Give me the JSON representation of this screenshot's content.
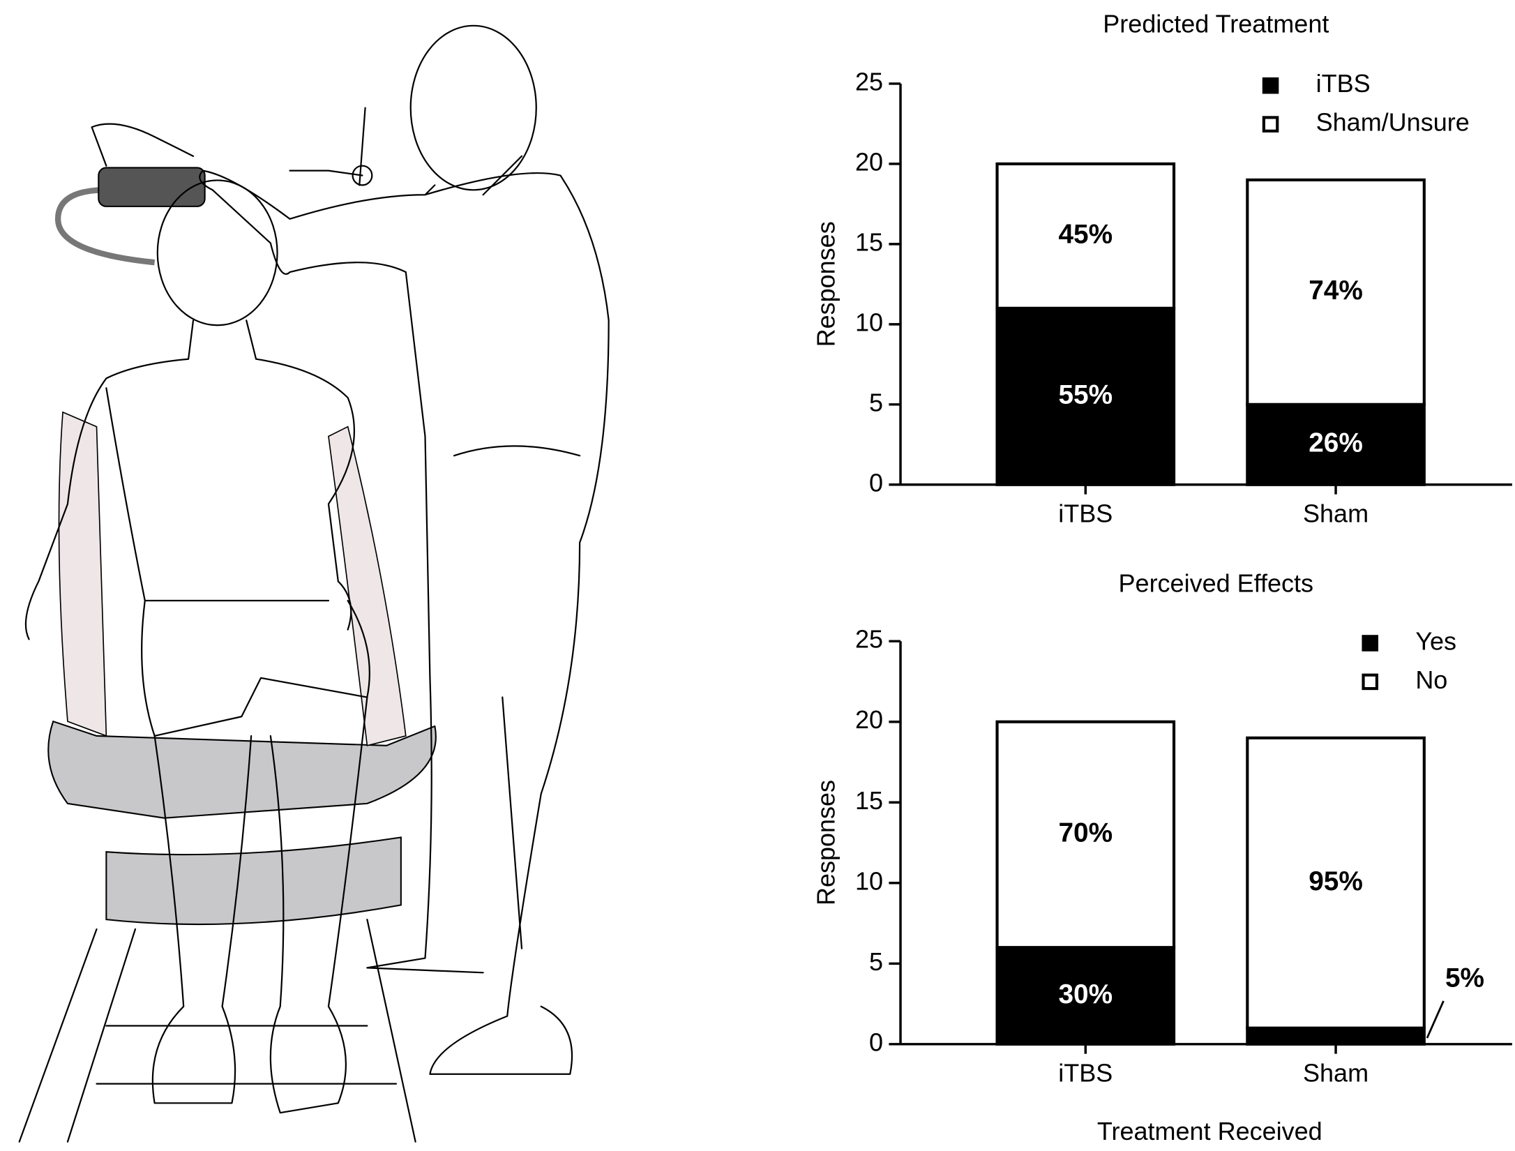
{
  "chart_data": [
    {
      "type": "stacked-bar",
      "title": "Predicted Treatment",
      "ylabel": "Responses",
      "categories": [
        "iTBS",
        "Sham"
      ],
      "series": [
        {
          "name": "iTBS",
          "color": "#000000",
          "values": [
            11,
            5
          ],
          "value_labels": [
            "55%",
            "26%"
          ]
        },
        {
          "name": "Sham/Unsure",
          "color": "#ffffff",
          "values": [
            9,
            14
          ],
          "value_labels": [
            "45%",
            "74%"
          ]
        }
      ],
      "ylim": [
        0,
        25
      ],
      "yticks": [
        0,
        5,
        10,
        15,
        20,
        25
      ],
      "legend": "top-right"
    },
    {
      "type": "stacked-bar",
      "title": "Perceived Effects",
      "ylabel": "Responses",
      "xlabel": "Treatment Received",
      "categories": [
        "iTBS",
        "Sham"
      ],
      "series": [
        {
          "name": "Yes",
          "color": "#000000",
          "values": [
            6,
            1
          ],
          "value_labels": [
            "30%",
            "5%"
          ]
        },
        {
          "name": "No",
          "color": "#ffffff",
          "values": [
            14,
            18
          ],
          "value_labels": [
            "70%",
            "95%"
          ]
        }
      ],
      "ylim": [
        0,
        25
      ],
      "yticks": [
        0,
        5,
        10,
        15,
        20,
        25
      ],
      "legend": "top-right"
    }
  ]
}
